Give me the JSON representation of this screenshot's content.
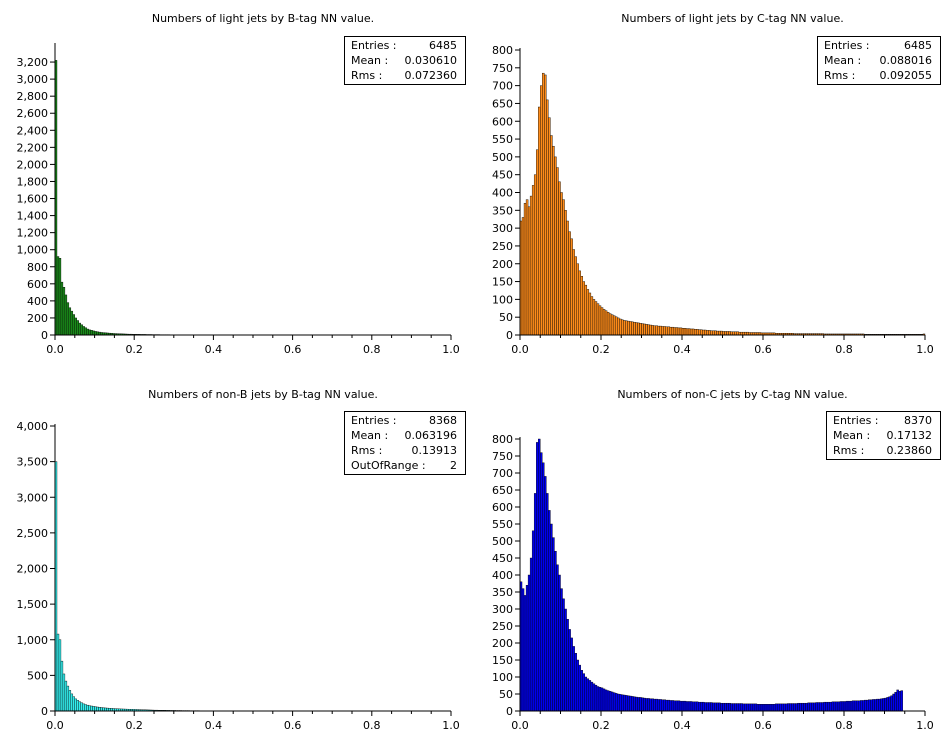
{
  "chart_data": [
    {
      "type": "bar",
      "title": "Numbers of light jets by B-tag NN value.",
      "color": "#1a8c1a",
      "xlim": [
        0,
        1.0
      ],
      "ylim": [
        0,
        3400
      ],
      "xticks": [
        "0.0",
        "0.2",
        "0.4",
        "0.6",
        "0.8",
        "1.0"
      ],
      "yticks": [
        "0",
        "200",
        "400",
        "600",
        "800",
        "1,000",
        "1,200",
        "1,400",
        "1,600",
        "1,800",
        "2,000",
        "2,200",
        "2,400",
        "2,600",
        "2,800",
        "3,000",
        "3,200"
      ],
      "stats": [
        {
          "label": "Entries :",
          "value": "6485"
        },
        {
          "label": "Mean :",
          "value": "0.030610"
        },
        {
          "label": "Rms :",
          "value": "0.072360"
        }
      ],
      "bins": {
        "x_start": 0.0,
        "width": 0.005,
        "values": [
          3220,
          920,
          900,
          620,
          560,
          470,
          380,
          320,
          280,
          240,
          200,
          170,
          140,
          120,
          100,
          85,
          70,
          60,
          55,
          48,
          42,
          38,
          34,
          30,
          28,
          26,
          24,
          22,
          20,
          18,
          17,
          16,
          15,
          14,
          13,
          12,
          11,
          10,
          10,
          9,
          9,
          8,
          8,
          7,
          7,
          7,
          6,
          6,
          6,
          5,
          5,
          5,
          5,
          4,
          4,
          4,
          4,
          4,
          3,
          3,
          3,
          3,
          3,
          3,
          3,
          2,
          2,
          2,
          2,
          2
        ]
      }
    },
    {
      "type": "bar",
      "title": "Numbers of light jets by C-tag NN value.",
      "color": "#ff8c1a",
      "xlim": [
        0,
        1.0
      ],
      "ylim": [
        0,
        800
      ],
      "xticks": [
        "0.0",
        "0.2",
        "0.4",
        "0.6",
        "0.8",
        "1.0"
      ],
      "yticks": [
        "0",
        "50",
        "100",
        "150",
        "200",
        "250",
        "300",
        "350",
        "400",
        "450",
        "500",
        "550",
        "600",
        "650",
        "700",
        "750",
        "800"
      ],
      "stats": [
        {
          "label": "Entries :",
          "value": "6485"
        },
        {
          "label": "Mean :",
          "value": "0.088016"
        },
        {
          "label": "Rms :",
          "value": "0.092055"
        }
      ],
      "bins": {
        "x_start": 0.0,
        "width": 0.005,
        "values": [
          320,
          330,
          370,
          380,
          360,
          390,
          420,
          450,
          520,
          640,
          700,
          735,
          730,
          660,
          610,
          560,
          530,
          500,
          470,
          430,
          400,
          380,
          350,
          320,
          290,
          270,
          240,
          220,
          200,
          180,
          165,
          150,
          140,
          128,
          118,
          108,
          100,
          94,
          88,
          82,
          77,
          72,
          68,
          64,
          60,
          57,
          54,
          51,
          48,
          45,
          43,
          41,
          40,
          39,
          38,
          37,
          36,
          35,
          34,
          33,
          32,
          31,
          30,
          29,
          28,
          27,
          26,
          26,
          25,
          25,
          24,
          24,
          23,
          23,
          22,
          22,
          21,
          21,
          20,
          20,
          19,
          19,
          18,
          18,
          17,
          17,
          16,
          16,
          15,
          15,
          14,
          14,
          13,
          13,
          12,
          12,
          12,
          11,
          11,
          11,
          10,
          10,
          10,
          10,
          9,
          9,
          9,
          9,
          8,
          8,
          8,
          8,
          8,
          7,
          7,
          7,
          7,
          7,
          7,
          6,
          6,
          6,
          6,
          6,
          6,
          6,
          5,
          5,
          5,
          5,
          5,
          5,
          5,
          5,
          5,
          4,
          4,
          4,
          4,
          4,
          4,
          4,
          4,
          4,
          4,
          4,
          4,
          4,
          4,
          4,
          3,
          3,
          3,
          3,
          3,
          3,
          3,
          3,
          3,
          3,
          3,
          3,
          3,
          3,
          3,
          3,
          3,
          3,
          3,
          3,
          2,
          2,
          2,
          2,
          2,
          2,
          2,
          2,
          2,
          2,
          2,
          2,
          2,
          2,
          2,
          2,
          2,
          2,
          2,
          2,
          2,
          2,
          2,
          2,
          2,
          2,
          2,
          2,
          2,
          3
        ]
      }
    },
    {
      "type": "bar",
      "title": "Numbers of non-B jets by B-tag NN value.",
      "color": "#33f0f0",
      "xlim": [
        0,
        1.0
      ],
      "ylim": [
        0,
        4000
      ],
      "xticks": [
        "0.0",
        "0.2",
        "0.4",
        "0.6",
        "0.8",
        "1.0"
      ],
      "yticks": [
        "0",
        "500",
        "1,000",
        "1,500",
        "2,000",
        "2,500",
        "3,000",
        "3,500",
        "4,000"
      ],
      "stats": [
        {
          "label": "Entries :",
          "value": "8368"
        },
        {
          "label": "Mean :",
          "value": "0.063196"
        },
        {
          "label": "Rms :",
          "value": "0.13913"
        },
        {
          "label": "OutOfRange :",
          "value": "2"
        }
      ],
      "bins": {
        "x_start": 0.0,
        "width": 0.005,
        "values": [
          3500,
          1080,
          1000,
          700,
          520,
          420,
          350,
          290,
          240,
          200,
          170,
          150,
          130,
          115,
          100,
          90,
          82,
          75,
          70,
          65,
          60,
          56,
          52,
          49,
          46,
          43,
          41,
          39,
          37,
          35,
          33,
          31,
          30,
          29,
          28,
          27,
          26,
          25,
          24,
          23,
          22,
          21,
          20,
          19,
          18,
          17,
          16,
          15,
          14,
          13,
          12,
          12,
          11,
          11,
          10,
          10,
          9,
          9,
          8,
          8,
          8,
          7,
          7,
          7,
          6,
          6,
          6,
          6,
          5,
          5,
          5,
          5,
          5,
          4,
          4,
          4,
          4,
          4,
          4,
          3,
          3,
          3,
          3,
          3,
          3,
          3,
          3,
          3,
          3,
          3
        ]
      }
    },
    {
      "type": "bar",
      "title": "Numbers of non-C jets by C-tag NN value.",
      "color": "#0000ee",
      "xlim": [
        0,
        1.0
      ],
      "ylim": [
        0,
        800
      ],
      "xticks": [
        "0.0",
        "0.2",
        "0.4",
        "0.6",
        "0.8",
        "1.0"
      ],
      "yticks": [
        "0",
        "50",
        "100",
        "150",
        "200",
        "250",
        "300",
        "350",
        "400",
        "450",
        "500",
        "550",
        "600",
        "650",
        "700",
        "750",
        "800"
      ],
      "stats": [
        {
          "label": "Entries :",
          "value": "8370"
        },
        {
          "label": "Mean :",
          "value": "0.17132"
        },
        {
          "label": "Rms :",
          "value": "0.23860"
        }
      ],
      "bins": {
        "x_start": 0.0,
        "width": 0.005,
        "values": [
          380,
          360,
          340,
          370,
          400,
          450,
          530,
          640,
          790,
          800,
          760,
          730,
          690,
          640,
          590,
          550,
          510,
          470,
          430,
          400,
          360,
          330,
          300,
          270,
          240,
          215,
          190,
          170,
          150,
          135,
          120,
          110,
          100,
          95,
          90,
          85,
          80,
          76,
          72,
          70,
          68,
          65,
          62,
          60,
          58,
          56,
          54,
          52,
          50,
          49,
          48,
          47,
          46,
          45,
          44,
          43,
          42,
          41,
          40,
          40,
          39,
          38,
          37,
          37,
          36,
          36,
          35,
          35,
          34,
          34,
          33,
          33,
          32,
          32,
          31,
          31,
          30,
          30,
          30,
          29,
          29,
          29,
          28,
          28,
          28,
          27,
          27,
          27,
          26,
          26,
          26,
          25,
          25,
          25,
          25,
          24,
          24,
          24,
          24,
          23,
          23,
          23,
          23,
          23,
          22,
          22,
          22,
          22,
          22,
          22,
          21,
          21,
          21,
          21,
          21,
          21,
          21,
          20,
          20,
          20,
          20,
          20,
          20,
          20,
          20,
          20,
          21,
          21,
          21,
          21,
          21,
          21,
          22,
          22,
          22,
          22,
          22,
          23,
          23,
          23,
          23,
          23,
          24,
          24,
          24,
          24,
          25,
          25,
          25,
          25,
          26,
          26,
          26,
          26,
          27,
          27,
          27,
          27,
          28,
          28,
          28,
          29,
          29,
          29,
          30,
          30,
          30,
          30,
          31,
          31,
          32,
          32,
          33,
          33,
          34,
          34,
          35,
          35,
          36,
          37,
          38,
          40,
          42,
          45,
          50,
          55,
          62,
          58,
          60
        ]
      }
    }
  ]
}
